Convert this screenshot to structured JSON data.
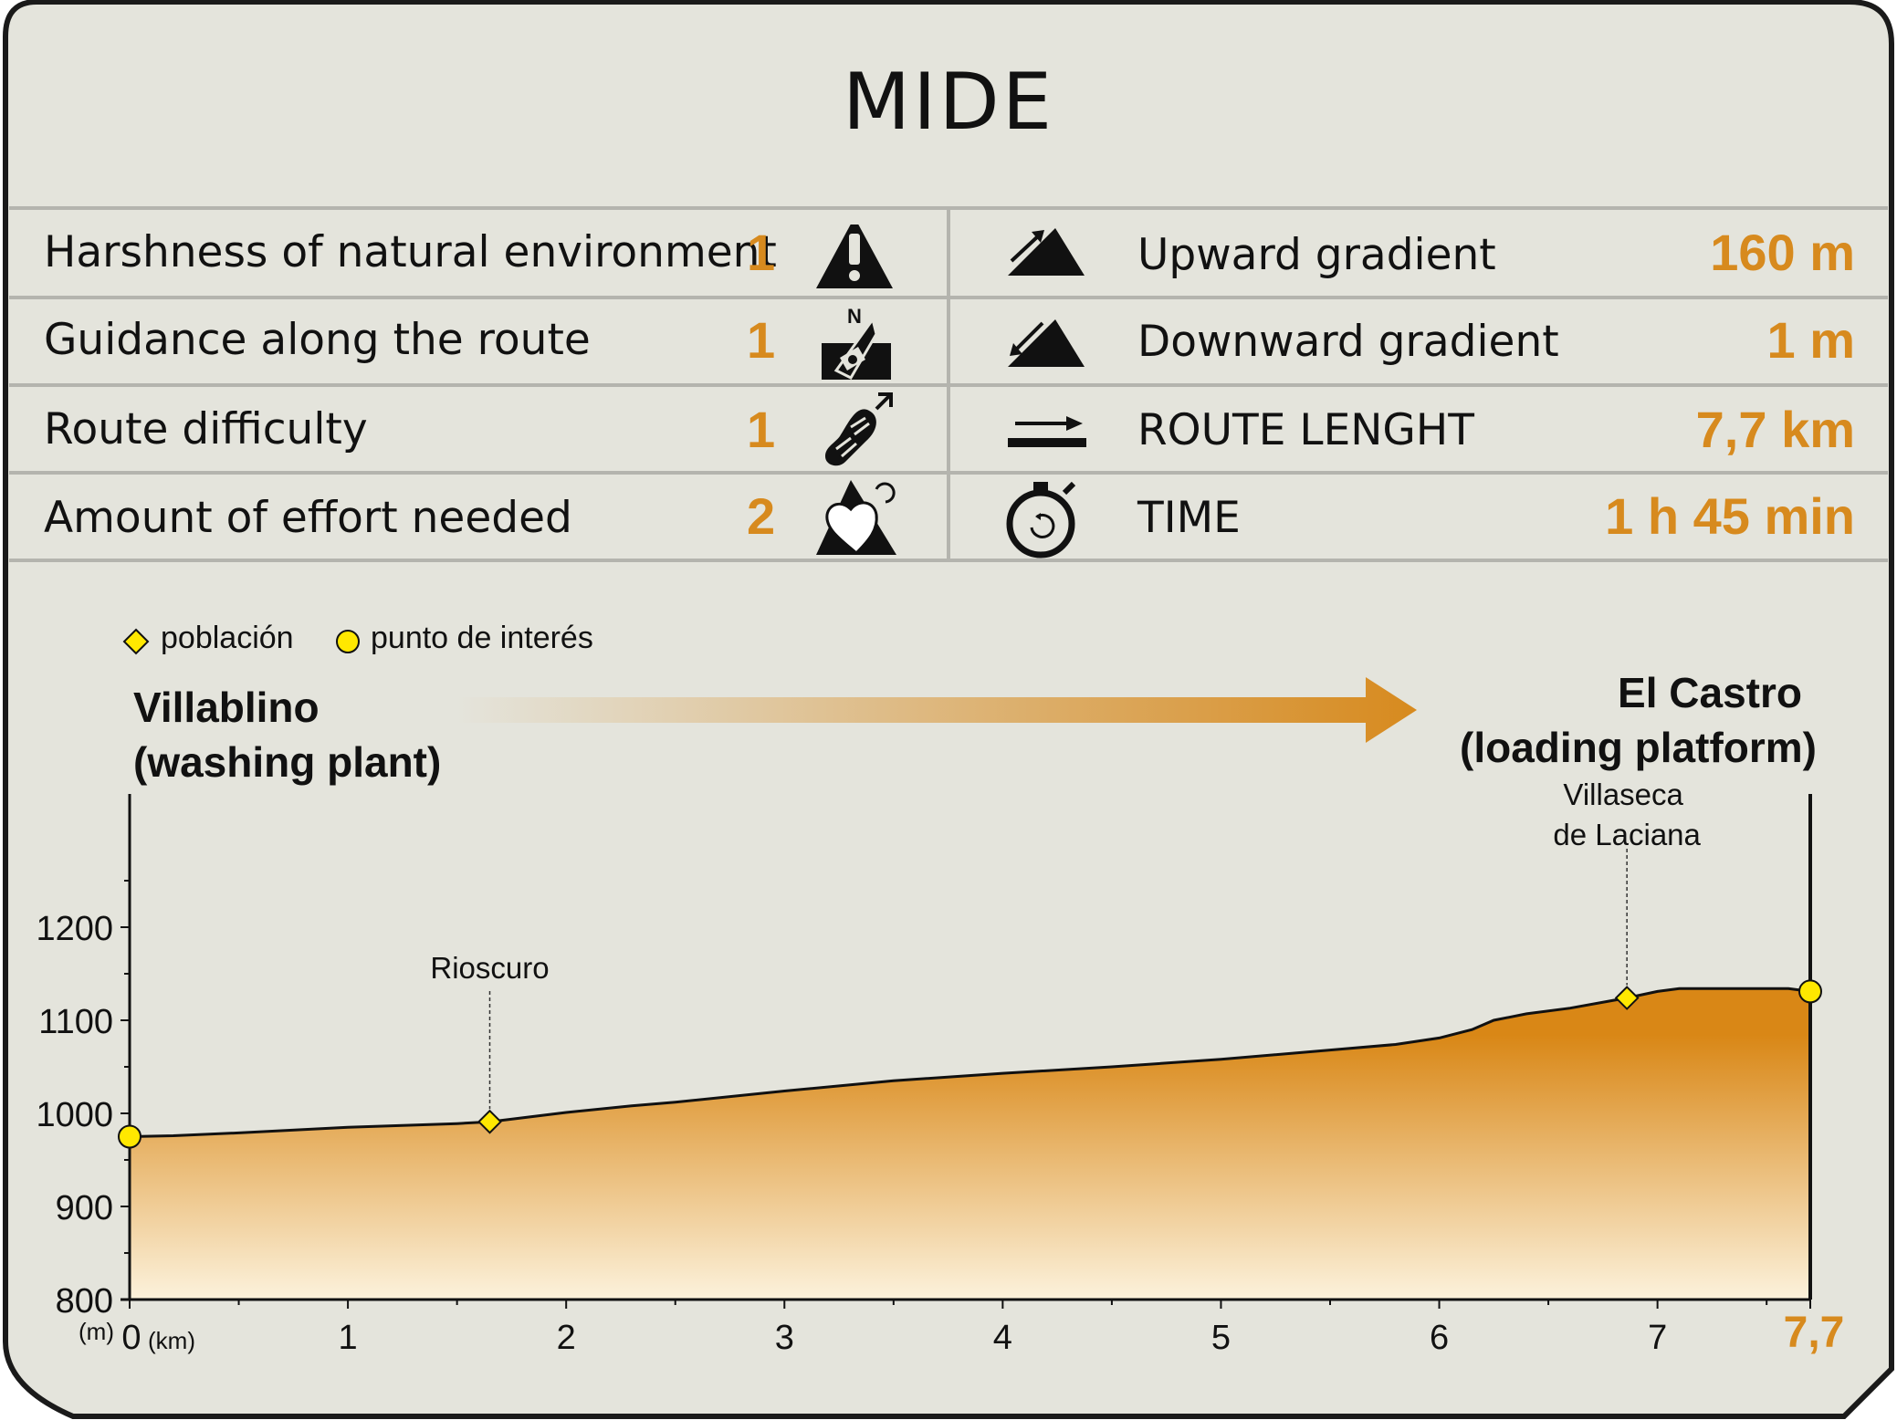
{
  "title": "MIDE",
  "mide": {
    "left": [
      {
        "label": "Harshness of natural environment",
        "value": "1",
        "icon": "warning-mountain-icon"
      },
      {
        "label": "Guidance along the route",
        "value": "1",
        "icon": "compass-north-icon"
      },
      {
        "label": "Route difficulty",
        "value": "1",
        "icon": "footprint-icon"
      },
      {
        "label": "Amount of effort needed",
        "value": "2",
        "icon": "heart-mountain-icon"
      }
    ],
    "right": [
      {
        "label": "Upward gradient",
        "value": "160 m",
        "icon": "upward-slope-icon"
      },
      {
        "label": "Downward gradient",
        "value": "1 m",
        "icon": "downward-slope-icon"
      },
      {
        "label": "ROUTE LENGHT",
        "value": "7,7 km",
        "icon": "distance-arrow-icon"
      },
      {
        "label": "TIME",
        "value": "1 h 45 min",
        "icon": "stopwatch-icon"
      }
    ]
  },
  "legend": {
    "town": "población",
    "poi": "punto de interés"
  },
  "route": {
    "start_line1": "Villablino",
    "start_line2": "(washing plant)",
    "end_line1": "El Castro",
    "end_line2": "(loading platform)"
  },
  "colors": {
    "accent": "#d78a1e",
    "background": "#e4e4dc",
    "town_marker": "#ffe800",
    "profile_top": "#d98716",
    "profile_bottom": "#fcf2dc"
  },
  "chart_data": {
    "type": "area",
    "ylabel": "(m)",
    "xlabel": "(km)",
    "ylim": [
      800,
      1300
    ],
    "xlim": [
      0,
      7.7
    ],
    "yticks": [
      800,
      900,
      1000,
      1100,
      1200
    ],
    "xticks": [
      "0",
      "1",
      "2",
      "3",
      "4",
      "5",
      "6",
      "7",
      "7,7"
    ],
    "profile": {
      "x": [
        0,
        0.2,
        0.5,
        1.0,
        1.5,
        1.65,
        2.0,
        2.3,
        2.5,
        3.0,
        3.5,
        4.0,
        4.5,
        5.0,
        5.5,
        5.8,
        6.0,
        6.15,
        6.25,
        6.4,
        6.6,
        6.86,
        7.0,
        7.1,
        7.3,
        7.6,
        7.7
      ],
      "y": [
        975,
        976,
        979,
        985,
        989,
        991,
        1001,
        1008,
        1012,
        1024,
        1035,
        1043,
        1050,
        1058,
        1068,
        1074,
        1081,
        1090,
        1100,
        1107,
        1113,
        1124,
        1131,
        1134,
        1134,
        1134,
        1131
      ]
    },
    "points": [
      {
        "name": "",
        "type": "poi",
        "x": 0,
        "y": 975
      },
      {
        "name": "Rioscuro",
        "type": "town",
        "x": 1.65,
        "y": 991
      },
      {
        "name": "Villaseca de Laciana",
        "line1": "Villaseca",
        "line2": "de Laciana",
        "type": "town",
        "x": 6.86,
        "y": 1124
      },
      {
        "name": "",
        "type": "poi",
        "x": 7.7,
        "y": 1131
      }
    ]
  }
}
